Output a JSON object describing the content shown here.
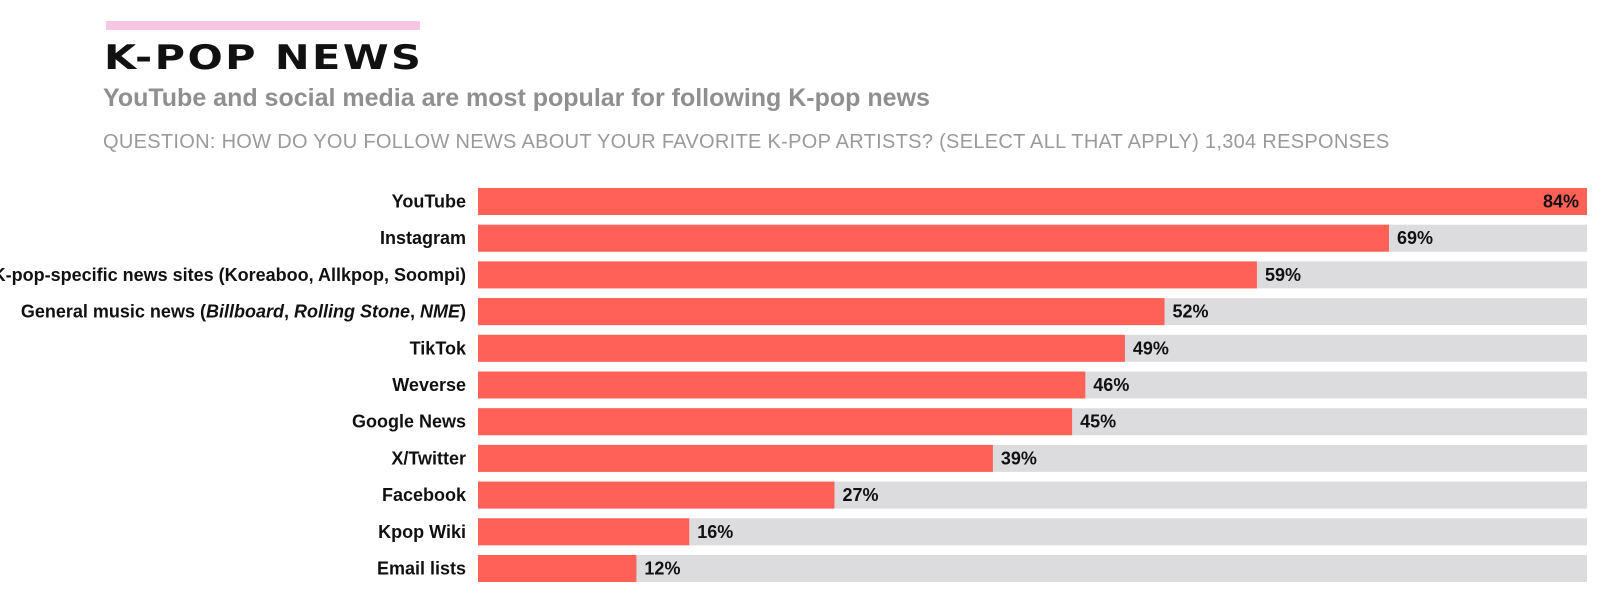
{
  "header": {
    "title": "K-POP NEWS",
    "subtitle": "YouTube and social media are most popular for following K-pop news",
    "question": "QUESTION: HOW DO YOU FOLLOW NEWS ABOUT YOUR FAVORITE K-POP ARTISTS? (SELECT ALL THAT APPLY) 1,304 RESPONSES"
  },
  "colors": {
    "accent": "#f7c6e1",
    "bar": "#ff6157",
    "track": "#dcdcde"
  },
  "chart_data": {
    "type": "bar",
    "orientation": "horizontal",
    "categories": [
      "YouTube",
      "Instagram",
      "K-pop-specific news sites (Koreaboo, Allkpop, Soompi)",
      "General music news (Billboard, Rolling Stone, NME)",
      "TikTok",
      "Weverse",
      "Google News",
      "X/Twitter",
      "Facebook",
      "Kpop Wiki",
      "Email lists"
    ],
    "values": [
      84,
      69,
      59,
      52,
      49,
      46,
      45,
      39,
      27,
      16,
      12
    ],
    "value_labels": [
      "84%",
      "69%",
      "59%",
      "52%",
      "49%",
      "46%",
      "45%",
      "39%",
      "27%",
      "16%",
      "12%"
    ],
    "xlim": [
      0,
      84
    ],
    "grid": false,
    "legend": "none"
  }
}
